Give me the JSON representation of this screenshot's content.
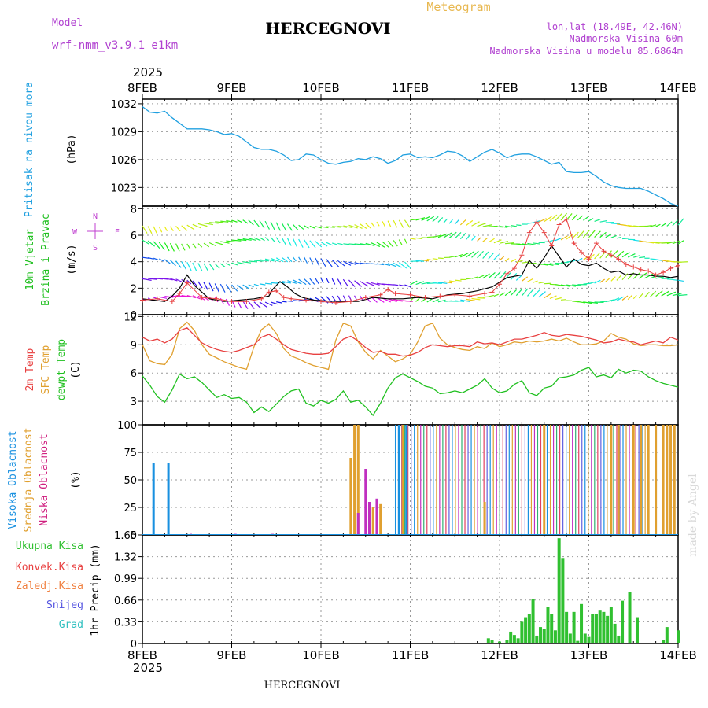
{
  "header": {
    "title": "HERCEGNOVI",
    "subtitle": "Meteogram",
    "model_label": "Model",
    "model_name": "wrf-nmm_v3.9.1 e1km",
    "coords": "lon,lat (18.49E, 42.46N)",
    "elevation": "Nadmorska Visina 60m",
    "model_elevation": "Nadmorska Visina u modelu 85.6864m",
    "year": "2025",
    "footer": "HERCEGNOVI",
    "credit": "made by Angel"
  },
  "time_axis": {
    "labels": [
      "8FEB",
      "9FEB",
      "10FEB",
      "11FEB",
      "12FEB",
      "13FEB",
      "14FEB"
    ],
    "range_hours": [
      0,
      144
    ]
  },
  "colors": {
    "pressure": "#20a0e0",
    "temp2m": "#e84040",
    "sfc": "#e0a030",
    "dewpt": "#20c020",
    "high_cloud": "#1890e0",
    "mid_cloud": "#e0a030",
    "low_cloud": "#c030c0",
    "precip": "#30c030",
    "model": "#b040d0",
    "credit": "#d8d8d8"
  },
  "chart_data": [
    {
      "type": "line",
      "id": "pressure",
      "ylabel": "Pritisak na nivou mora",
      "unit": "(hPa)",
      "ylim": [
        1021,
        1032.5
      ],
      "yticks": [
        1023,
        1026,
        1029,
        1032
      ],
      "grid": true,
      "series": [
        {
          "x": [
            0,
            2,
            4,
            6,
            8,
            10,
            12,
            14,
            16,
            18,
            20,
            22,
            24,
            26,
            28,
            30,
            32,
            34,
            36,
            38,
            40,
            42,
            44,
            46,
            48,
            50,
            52,
            54,
            56,
            58,
            60,
            62,
            64,
            66,
            68,
            70,
            72,
            74,
            76,
            78,
            80,
            82,
            84,
            86,
            88,
            90,
            92,
            94,
            96,
            98,
            100,
            102,
            104,
            106,
            108,
            110,
            112,
            114,
            116,
            118,
            120,
            122,
            124,
            126,
            128,
            130,
            132,
            134,
            136,
            138,
            140,
            142,
            144
          ],
          "values": [
            1031.7,
            1031.1,
            1031.0,
            1031.2,
            1030.5,
            1029.9,
            1029.3,
            1029.3,
            1029.3,
            1029.2,
            1029.0,
            1028.7,
            1028.8,
            1028.5,
            1027.9,
            1027.3,
            1027.1,
            1027.1,
            1026.9,
            1026.5,
            1025.9,
            1026.0,
            1026.6,
            1026.5,
            1026.0,
            1025.6,
            1025.5,
            1025.7,
            1025.8,
            1026.1,
            1026.0,
            1026.3,
            1026.1,
            1025.6,
            1025.9,
            1026.5,
            1026.6,
            1026.2,
            1026.3,
            1026.2,
            1026.5,
            1026.9,
            1026.8,
            1026.4,
            1025.8,
            1026.3,
            1026.8,
            1027.1,
            1026.7,
            1026.2,
            1026.5,
            1026.6,
            1026.6,
            1026.3,
            1025.9,
            1025.5,
            1025.7,
            1024.7,
            1024.6,
            1024.6,
            1024.7,
            1024.2,
            1023.6,
            1023.2,
            1023.0,
            1022.9,
            1022.9,
            1022.9,
            1022.6,
            1022.2,
            1021.8,
            1021.3,
            1021.0
          ]
        }
      ]
    },
    {
      "type": "line",
      "id": "wind",
      "ylabel": "10m Vjetar Brzina i Pravac",
      "unit": "(m/s)",
      "compass": [
        "N",
        "E",
        "S",
        "W"
      ],
      "ylim": [
        0,
        8.2
      ],
      "yticks": [
        0,
        2,
        4,
        6,
        8
      ],
      "grid": true,
      "series": [
        {
          "style": "line-black",
          "x": [
            0,
            3,
            6,
            8,
            10,
            12,
            14,
            18,
            22,
            26,
            30,
            34,
            35,
            37,
            39,
            41,
            43,
            46,
            52,
            58,
            62,
            66,
            70,
            74,
            78,
            82,
            86,
            90,
            94,
            98,
            102,
            104,
            106,
            108,
            110,
            112,
            114,
            116,
            118,
            120,
            122,
            124,
            126,
            128,
            130,
            132,
            134,
            136,
            138,
            140,
            142,
            144
          ],
          "values": [
            1.2,
            1.1,
            1.0,
            1.4,
            2.0,
            3.0,
            2.2,
            1.2,
            1.0,
            1.1,
            1.2,
            1.4,
            1.9,
            2.5,
            2.1,
            1.6,
            1.3,
            1.1,
            1.0,
            1.0,
            1.3,
            1.2,
            1.2,
            1.3,
            1.2,
            1.5,
            1.6,
            1.8,
            2.1,
            2.8,
            3.0,
            4.1,
            3.5,
            4.3,
            5.2,
            4.4,
            3.6,
            4.2,
            3.8,
            3.7,
            3.9,
            3.5,
            3.2,
            3.3,
            3.0,
            3.1,
            3.0,
            3.0,
            2.9,
            2.9,
            2.8,
            2.9
          ]
        },
        {
          "style": "gust-red",
          "x": [
            0,
            4,
            8,
            10,
            12,
            16,
            20,
            24,
            28,
            32,
            34,
            36,
            38,
            40,
            44,
            48,
            52,
            56,
            60,
            64,
            66,
            68,
            72,
            76,
            80,
            84,
            88,
            92,
            94,
            96,
            98,
            100,
            102,
            104,
            106,
            108,
            110,
            112,
            114,
            116,
            118,
            120,
            122,
            124,
            126,
            128,
            130,
            132,
            134,
            136,
            138,
            140,
            142,
            144
          ],
          "values": [
            1.1,
            1.2,
            1.0,
            1.6,
            2.4,
            1.3,
            1.2,
            1.0,
            1.0,
            1.2,
            1.7,
            1.8,
            1.3,
            1.2,
            1.1,
            1.0,
            0.9,
            1.0,
            1.3,
            1.5,
            1.9,
            1.6,
            1.5,
            1.3,
            1.4,
            1.5,
            1.4,
            1.6,
            1.7,
            2.3,
            3.1,
            3.5,
            4.5,
            6.2,
            7.0,
            6.2,
            5.2,
            6.8,
            7.2,
            5.4,
            4.7,
            4.2,
            5.4,
            4.8,
            4.5,
            4.2,
            3.8,
            3.6,
            3.4,
            3.3,
            3.0,
            3.2,
            3.5,
            3.7
          ]
        }
      ]
    },
    {
      "type": "line",
      "id": "temperature",
      "ylabel": "2m Temp / SFC Temp / dewpt Temp",
      "unit": "(C)",
      "ylim": [
        0.5,
        12.2
      ],
      "yticks": [
        3,
        6,
        9,
        12
      ],
      "grid": true,
      "series": [
        {
          "name": "2m Temp",
          "x": [
            0,
            2,
            4,
            6,
            8,
            10,
            12,
            14,
            16,
            18,
            20,
            22,
            24,
            26,
            28,
            30,
            32,
            34,
            36,
            38,
            40,
            42,
            44,
            46,
            48,
            50,
            52,
            54,
            56,
            58,
            60,
            62,
            64,
            66,
            68,
            70,
            72,
            74,
            76,
            78,
            80,
            82,
            84,
            86,
            88,
            90,
            92,
            94,
            96,
            98,
            100,
            102,
            104,
            106,
            108,
            110,
            112,
            114,
            116,
            118,
            120,
            122,
            124,
            126,
            128,
            130,
            132,
            134,
            136,
            138,
            140,
            142,
            144
          ],
          "values": [
            9.8,
            9.4,
            9.6,
            9.2,
            9.6,
            10.5,
            10.8,
            10.0,
            9.2,
            8.8,
            8.5,
            8.3,
            8.2,
            8.4,
            8.7,
            9.0,
            9.8,
            10.1,
            9.6,
            9.0,
            8.5,
            8.3,
            8.1,
            8.0,
            8.0,
            8.1,
            8.8,
            9.6,
            9.9,
            9.4,
            8.7,
            8.2,
            8.3,
            8.0,
            8.0,
            7.8,
            7.9,
            8.2,
            8.7,
            9.0,
            8.9,
            8.8,
            8.9,
            8.9,
            8.8,
            9.3,
            9.1,
            9.2,
            9.0,
            9.3,
            9.6,
            9.6,
            9.8,
            10.0,
            10.3,
            10.0,
            9.9,
            10.1,
            10.0,
            9.9,
            9.7,
            9.5,
            9.2,
            9.3,
            9.6,
            9.4,
            9.3,
            9.0,
            9.2,
            9.4,
            9.2,
            9.8,
            9.5
          ]
        },
        {
          "name": "SFC Temp",
          "x": [
            0,
            2,
            4,
            6,
            8,
            10,
            12,
            14,
            16,
            18,
            20,
            22,
            24,
            26,
            28,
            30,
            32,
            34,
            36,
            38,
            40,
            42,
            44,
            46,
            48,
            50,
            52,
            54,
            56,
            58,
            60,
            62,
            64,
            66,
            68,
            70,
            72,
            74,
            76,
            78,
            80,
            82,
            84,
            86,
            88,
            90,
            92,
            94,
            96,
            98,
            100,
            102,
            104,
            106,
            108,
            110,
            112,
            114,
            116,
            118,
            120,
            122,
            124,
            126,
            128,
            130,
            132,
            134,
            136,
            138,
            140,
            142,
            144
          ],
          "values": [
            9.0,
            7.3,
            7.0,
            6.9,
            8.0,
            10.7,
            11.4,
            10.5,
            9.0,
            8.0,
            7.6,
            7.2,
            6.9,
            6.6,
            6.4,
            8.8,
            10.6,
            11.2,
            10.2,
            8.6,
            7.8,
            7.5,
            7.1,
            6.8,
            6.6,
            6.4,
            9.5,
            11.3,
            11.0,
            9.3,
            8.2,
            7.5,
            8.4,
            7.8,
            7.2,
            7.5,
            8.0,
            9.3,
            11.0,
            11.3,
            9.7,
            9.0,
            8.7,
            8.5,
            8.4,
            8.8,
            8.6,
            9.2,
            8.8,
            9.0,
            9.3,
            9.2,
            9.4,
            9.3,
            9.4,
            9.6,
            9.4,
            9.7,
            9.3,
            9.0,
            9.0,
            9.1,
            9.4,
            10.2,
            9.8,
            9.6,
            9.1,
            8.9,
            9.0,
            9.0,
            8.9,
            8.9,
            9.0
          ]
        },
        {
          "name": "dewpt Temp",
          "x": [
            0,
            2,
            4,
            6,
            8,
            10,
            12,
            14,
            16,
            18,
            20,
            22,
            24,
            26,
            28,
            30,
            32,
            34,
            36,
            38,
            40,
            42,
            44,
            46,
            48,
            50,
            52,
            54,
            56,
            58,
            60,
            62,
            64,
            66,
            68,
            70,
            72,
            74,
            76,
            78,
            80,
            82,
            84,
            86,
            88,
            90,
            92,
            94,
            96,
            98,
            100,
            102,
            104,
            106,
            108,
            110,
            112,
            114,
            116,
            118,
            120,
            122,
            124,
            126,
            128,
            130,
            132,
            134,
            136,
            138,
            140,
            142,
            144
          ],
          "values": [
            5.7,
            4.7,
            3.5,
            2.9,
            4.2,
            5.9,
            5.4,
            5.6,
            5.0,
            4.2,
            3.4,
            3.7,
            3.3,
            3.4,
            2.9,
            1.8,
            2.4,
            1.9,
            2.7,
            3.5,
            4.1,
            4.3,
            2.8,
            2.5,
            3.1,
            2.8,
            3.2,
            4.1,
            2.9,
            3.1,
            2.4,
            1.5,
            2.8,
            4.4,
            5.5,
            5.9,
            5.5,
            5.1,
            4.6,
            4.4,
            3.8,
            3.9,
            4.1,
            3.9,
            4.3,
            4.7,
            5.4,
            4.4,
            3.9,
            4.1,
            4.8,
            5.2,
            3.9,
            3.6,
            4.4,
            4.6,
            5.5,
            5.6,
            5.8,
            6.3,
            6.6,
            5.6,
            5.8,
            5.5,
            6.4,
            6.0,
            6.3,
            6.2,
            5.6,
            5.2,
            4.9,
            4.7,
            4.5
          ]
        }
      ]
    },
    {
      "type": "bar",
      "id": "clouds",
      "ylabel": "Visoka Oblacnost / Srednja Oblacnost / Niska Oblacnost",
      "unit": "(%)",
      "ylim": [
        0,
        100
      ],
      "yticks": [
        0,
        25,
        50,
        75,
        100
      ],
      "grid": true,
      "series": [
        {
          "name": "Visoka Oblacnost",
          "x": [
            3,
            7,
            69,
            70,
            71
          ],
          "values": [
            65,
            65,
            100,
            100,
            100
          ]
        },
        {
          "name": "Srednja Oblacnost",
          "x": [
            56,
            57,
            58,
            62,
            64,
            70,
            92,
            108,
            126,
            128,
            132,
            134,
            136,
            138,
            140,
            141,
            142,
            143
          ],
          "values": [
            70,
            100,
            100,
            25,
            28,
            100,
            30,
            100,
            100,
            100,
            100,
            100,
            100,
            100,
            100,
            100,
            100,
            100
          ]
        },
        {
          "name": "Niska Oblacnost",
          "x": [
            13,
            25,
            35,
            58,
            60,
            61,
            63
          ],
          "values": [
            1,
            1,
            1,
            20,
            60,
            30,
            33
          ]
        }
      ],
      "dense_hours": [
        68,
        136
      ]
    },
    {
      "type": "bar",
      "id": "precip",
      "ylabel": "1hr Precip (mm)",
      "ylim": [
        0,
        1.65
      ],
      "yticks": [
        0,
        0.33,
        0.66,
        0.99,
        1.32,
        1.65
      ],
      "grid": true,
      "legend": [
        "Ukupna Kisa",
        "Konvek.Kisa",
        "Zaledj.Kisa",
        "Snijeg",
        "Grad"
      ],
      "series": [
        {
          "name": "Ukupna Kisa",
          "x": [
            93,
            94,
            96,
            98,
            99,
            100,
            101,
            102,
            103,
            104,
            105,
            106,
            107,
            108,
            109,
            110,
            111,
            112,
            113,
            114,
            115,
            116,
            117,
            118,
            119,
            120,
            121,
            122,
            123,
            124,
            125,
            126,
            127,
            128,
            129,
            131,
            133,
            140,
            141,
            144
          ],
          "values": [
            0.08,
            0.05,
            0.03,
            0.05,
            0.18,
            0.13,
            0.08,
            0.33,
            0.4,
            0.45,
            0.68,
            0.12,
            0.25,
            0.22,
            0.55,
            0.45,
            0.2,
            1.6,
            1.3,
            0.48,
            0.15,
            0.48,
            0.04,
            0.6,
            0.15,
            0.1,
            0.45,
            0.45,
            0.5,
            0.48,
            0.42,
            0.55,
            0.3,
            0.12,
            0.65,
            0.78,
            0.4,
            0.05,
            0.25,
            0.2
          ]
        }
      ]
    }
  ]
}
